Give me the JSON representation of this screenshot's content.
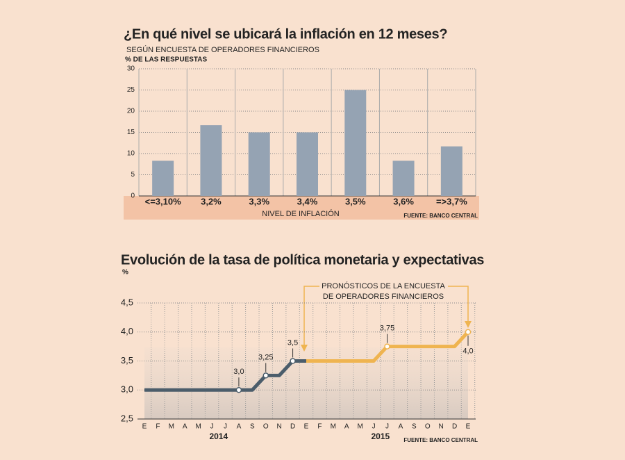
{
  "chart_data": [
    {
      "type": "bar",
      "title": "¿En qué nivel se ubicará la inflación en 12 meses?",
      "subtitle": "SEGÚN ENCUESTA DE OPERADORES FINANCIEROS",
      "y_label": "% DE LAS RESPUESTAS",
      "x_label": "NIVEL DE INFLACIÓN",
      "source": "FUENTE: BANCO CENTRAL",
      "categories": [
        "<=3,10%",
        "3,2%",
        "3,3%",
        "3,4%",
        "3,5%",
        "3,6%",
        "=>3,7%"
      ],
      "values": [
        8.3,
        16.7,
        15,
        15,
        25,
        8.3,
        11.7
      ],
      "color": "#95a3b3",
      "ylim": [
        0,
        30
      ],
      "yticks": [
        0,
        5,
        10,
        15,
        20,
        25,
        30
      ],
      "grid": true
    },
    {
      "type": "line",
      "title": "Evolución de la tasa de política monetaria y expectativas",
      "y_label": "%",
      "source": "FUENTE: BANCO CENTRAL",
      "annotation": [
        "PRONÓSTICOS DE LA ENCUESTA",
        "DE OPERADORES FINANCIEROS"
      ],
      "categories": [
        "E",
        "F",
        "M",
        "A",
        "M",
        "J",
        "J",
        "A",
        "S",
        "O",
        "N",
        "D",
        "E",
        "F",
        "M",
        "A",
        "M",
        "J",
        "J",
        "A",
        "S",
        "O",
        "N",
        "D",
        "E"
      ],
      "year_labels": [
        "2014",
        "2015"
      ],
      "series": [
        {
          "color": "#4b5d6b",
          "values": [
            3,
            3,
            3,
            3,
            3,
            3,
            3,
            3,
            3,
            3.25,
            3.25,
            3.5,
            3.5,
            null,
            null,
            null,
            null,
            null,
            null,
            null,
            null,
            null,
            null,
            null,
            null
          ],
          "value_labels": [
            null,
            null,
            null,
            null,
            null,
            null,
            null,
            "3,0",
            null,
            "3,25",
            null,
            "3,5",
            null,
            null,
            null,
            null,
            null,
            null,
            null,
            null,
            null,
            null,
            null,
            null,
            null
          ]
        },
        {
          "color": "#efb450",
          "values": [
            null,
            null,
            null,
            null,
            null,
            null,
            null,
            null,
            null,
            null,
            null,
            null,
            3.5,
            3.5,
            3.5,
            3.5,
            3.5,
            3.5,
            3.75,
            3.75,
            3.75,
            3.75,
            3.75,
            3.75,
            4
          ],
          "value_labels": [
            null,
            null,
            null,
            null,
            null,
            null,
            null,
            null,
            null,
            null,
            null,
            null,
            null,
            null,
            null,
            null,
            null,
            null,
            "3,75",
            null,
            null,
            null,
            null,
            null,
            "4,0"
          ]
        }
      ],
      "ylim": [
        2.5,
        4.5
      ],
      "yticks": [
        {
          "value": 2.5,
          "label": "2,5"
        },
        {
          "value": 3,
          "label": "3,0"
        },
        {
          "value": 3.5,
          "label": "3,5"
        },
        {
          "value": 4,
          "label": "4,0"
        },
        {
          "value": 4.5,
          "label": "4,5"
        }
      ],
      "grid": true
    }
  ]
}
